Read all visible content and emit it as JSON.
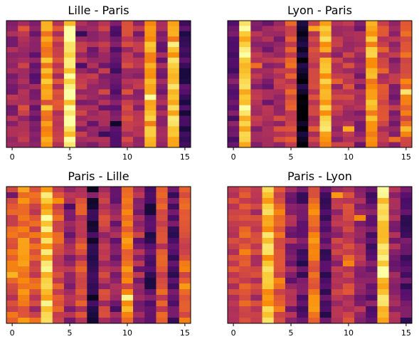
{
  "chart_data": {
    "type": "heatmap",
    "colormap": "inferno",
    "columns": 16,
    "rows": 24,
    "xticks": [
      0,
      5,
      10,
      15
    ],
    "value_range": [
      0,
      1
    ],
    "panels": [
      {
        "title": "Lille - Paris",
        "column_levels": [
          0.42,
          0.5,
          0.36,
          0.78,
          0.52,
          0.95,
          0.45,
          0.4,
          0.46,
          0.28,
          0.5,
          0.42,
          0.8,
          0.38,
          0.86,
          0.2
        ],
        "noise_seed": 11
      },
      {
        "title": "Lyon - Paris",
        "column_levels": [
          0.3,
          0.9,
          0.45,
          0.4,
          0.5,
          0.62,
          0.06,
          0.55,
          0.84,
          0.48,
          0.52,
          0.4,
          0.8,
          0.55,
          0.42,
          0.66
        ],
        "noise_seed": 23
      },
      {
        "title": "Paris - Lille",
        "column_levels": [
          0.62,
          0.7,
          0.6,
          0.88,
          0.58,
          0.4,
          0.55,
          0.12,
          0.5,
          0.38,
          0.74,
          0.42,
          0.2,
          0.58,
          0.26,
          0.64
        ],
        "noise_seed": 37
      },
      {
        "title": "Paris - Lyon",
        "column_levels": [
          0.56,
          0.62,
          0.52,
          0.84,
          0.64,
          0.4,
          0.28,
          0.7,
          0.22,
          0.48,
          0.56,
          0.42,
          0.3,
          0.9,
          0.4,
          0.26
        ],
        "noise_seed": 53
      }
    ]
  }
}
